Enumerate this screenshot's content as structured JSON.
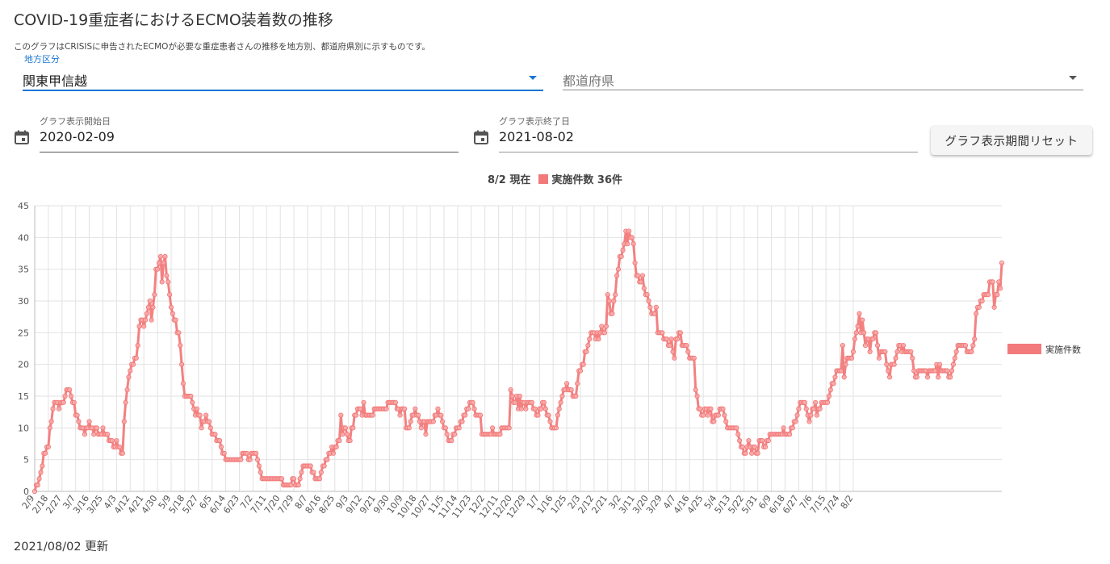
{
  "page": {
    "title": "COVID-19重症者におけるECMO装着数の推移",
    "description": "このグラフはCRISISに申告されたECMOが必要な重症患者さんの推移を地方別、都道府県別に示すものです。",
    "updated": "2021/08/02 更新"
  },
  "filters": {
    "region_label": "地方区分",
    "region_value": "関東甲信越",
    "prefecture_placeholder": "都道府県"
  },
  "dates": {
    "start_label": "グラフ表示開始日",
    "start_value": "2020-02-09",
    "end_label": "グラフ表示終了日",
    "end_value": "2021-08-02",
    "reset_label": "グラフ表示期間リセット"
  },
  "summary": {
    "date_text": "8/2 現在",
    "count_text": "実施件数 36件"
  },
  "colors": {
    "series": "#f27a7a",
    "accent": "#1976d2"
  },
  "chart_data": {
    "type": "line",
    "y_range": [
      0,
      45
    ],
    "y_ticks": [
      0,
      5,
      10,
      15,
      20,
      25,
      30,
      35,
      40,
      45
    ],
    "grid": true,
    "legend_position": "right",
    "x_tick_labels": [
      "2/9",
      "2/18",
      "2/27",
      "3/7",
      "3/16",
      "3/25",
      "4/3",
      "4/12",
      "4/21",
      "4/30",
      "5/9",
      "5/18",
      "5/27",
      "6/5",
      "6/14",
      "6/23",
      "7/2",
      "7/11",
      "7/20",
      "7/29",
      "8/7",
      "8/16",
      "8/25",
      "9/3",
      "9/12",
      "9/21",
      "9/30",
      "10/9",
      "10/18",
      "10/27",
      "11/5",
      "11/14",
      "11/23",
      "12/2",
      "12/11",
      "12/20",
      "12/29",
      "1/7",
      "1/16",
      "1/25",
      "2/3",
      "2/12",
      "2/21",
      "3/2",
      "3/11",
      "3/20",
      "3/29",
      "4/7",
      "4/16",
      "4/25",
      "5/4",
      "5/13",
      "5/22",
      "5/31",
      "6/9",
      "6/18",
      "6/27",
      "7/6",
      "7/15",
      "7/24",
      "8/2"
    ],
    "series": [
      {
        "name": "実施件数",
        "x_start": "2020-02-09",
        "x_step_days": 1,
        "values": [
          0,
          1,
          1,
          2,
          3,
          4,
          6,
          6,
          7,
          7,
          10,
          11,
          13,
          14,
          14,
          14,
          13,
          14,
          14,
          14,
          15,
          16,
          16,
          16,
          15,
          14,
          14,
          12,
          12,
          11,
          10,
          10,
          10,
          9,
          10,
          10,
          11,
          10,
          10,
          9,
          10,
          10,
          9,
          9,
          9,
          10,
          9,
          9,
          9,
          8,
          8,
          8,
          7,
          7,
          8,
          7,
          7,
          6,
          6,
          11,
          14,
          16,
          18,
          19,
          20,
          20,
          21,
          21,
          23,
          26,
          27,
          27,
          26,
          27,
          28,
          29,
          30,
          27,
          29,
          31,
          35,
          35,
          36,
          37,
          33,
          36,
          37,
          34,
          33,
          31,
          29,
          28,
          27,
          27,
          25,
          25,
          23,
          20,
          17,
          15,
          15,
          15,
          15,
          15,
          14,
          13,
          12,
          13,
          12,
          12,
          10,
          11,
          11,
          12,
          11,
          11,
          10,
          9,
          9,
          9,
          8,
          8,
          8,
          7,
          6,
          6,
          5,
          5,
          5,
          5,
          5,
          5,
          5,
          5,
          5,
          5,
          5,
          6,
          6,
          6,
          6,
          5,
          5,
          6,
          6,
          6,
          6,
          5,
          4,
          3,
          2,
          2,
          2,
          2,
          2,
          2,
          2,
          2,
          2,
          2,
          2,
          2,
          2,
          2,
          1,
          1,
          1,
          1,
          1,
          1,
          2,
          2,
          1,
          1,
          1,
          2,
          3,
          4,
          4,
          4,
          4,
          4,
          4,
          3,
          3,
          2,
          2,
          2,
          2,
          3,
          4,
          4,
          5,
          5,
          6,
          6,
          7,
          6,
          7,
          7,
          8,
          8,
          12,
          9,
          10,
          10,
          9,
          8,
          8,
          10,
          10,
          12,
          12,
          13,
          13,
          13,
          12,
          14,
          12,
          12,
          12,
          12,
          12,
          12,
          13,
          13,
          13,
          13,
          13,
          13,
          13,
          13,
          13,
          14,
          14,
          14,
          14,
          14,
          14,
          13,
          13,
          12,
          13,
          13,
          13,
          10,
          10,
          10,
          11,
          12,
          12,
          13,
          12,
          12,
          11,
          10,
          11,
          11,
          9,
          11,
          11,
          11,
          11,
          11,
          12,
          12,
          13,
          12,
          12,
          11,
          10,
          10,
          9,
          8,
          8,
          8,
          9,
          9,
          10,
          10,
          10,
          11,
          11,
          12,
          12,
          13,
          13,
          14,
          14,
          14,
          13,
          12,
          12,
          12,
          12,
          9,
          9,
          9,
          9,
          9,
          9,
          9,
          10,
          9,
          9,
          9,
          9,
          9,
          10,
          10,
          10,
          10,
          10,
          10,
          16,
          15,
          14,
          14,
          15,
          13,
          15,
          13,
          14,
          14,
          13,
          14,
          14,
          14,
          14,
          13,
          13,
          12,
          12,
          13,
          13,
          14,
          14,
          13,
          12,
          12,
          11,
          10,
          10,
          10,
          10,
          12,
          13,
          14,
          15,
          16,
          16,
          17,
          16,
          16,
          16,
          15,
          15,
          15,
          17,
          19,
          19,
          20,
          20,
          22,
          22,
          23,
          24,
          25,
          25,
          25,
          24,
          25,
          24,
          25,
          26,
          25,
          25,
          26,
          31,
          30,
          28,
          28,
          30,
          31,
          34,
          35,
          37,
          37,
          38,
          39,
          41,
          39,
          41,
          40,
          40,
          39,
          36,
          34,
          34,
          33,
          33,
          34,
          32,
          31,
          31,
          30,
          29,
          28,
          28,
          28,
          29,
          25,
          25,
          25,
          25,
          24,
          24,
          24,
          23,
          23,
          24,
          22,
          21,
          24,
          24,
          25,
          25,
          23,
          23,
          23,
          23,
          22,
          21,
          21,
          21,
          21,
          16,
          15,
          13,
          13,
          12,
          12,
          13,
          13,
          12,
          13,
          13,
          11,
          11,
          12,
          12,
          12,
          13,
          13,
          13,
          12,
          11,
          10,
          10,
          10,
          10,
          10,
          10,
          10,
          9,
          8,
          7,
          7,
          6,
          6,
          7,
          8,
          7,
          6,
          7,
          7,
          6,
          6,
          8,
          8,
          8,
          7,
          7,
          8,
          8,
          9,
          9,
          9,
          9,
          9,
          9,
          9,
          9,
          9,
          10,
          9,
          9,
          9,
          9,
          10,
          10,
          11,
          11,
          12,
          13,
          14,
          14,
          14,
          14,
          13,
          12,
          11,
          12,
          13,
          13,
          14,
          12,
          13,
          13,
          14,
          14,
          14,
          14,
          14,
          15,
          16,
          17,
          17,
          18,
          19,
          19,
          19,
          19,
          23,
          18,
          20,
          21,
          21,
          21,
          21,
          22,
          24,
          25,
          26,
          28,
          25,
          27,
          25,
          23,
          24,
          24,
          22,
          24,
          24,
          25,
          25,
          23,
          21,
          22,
          22,
          22,
          22,
          20,
          19,
          18,
          20,
          20,
          20,
          21,
          22,
          23,
          23,
          22,
          23,
          22,
          22,
          22,
          22,
          22,
          21,
          19,
          18,
          18,
          19,
          19,
          19,
          19,
          19,
          19,
          18,
          19,
          19,
          19,
          19,
          19,
          20,
          18,
          20,
          19,
          19,
          19,
          19,
          19,
          18,
          18,
          19,
          20,
          21,
          22,
          23,
          23,
          23,
          23,
          23,
          23,
          22,
          22,
          22,
          22,
          23,
          24,
          28,
          29,
          29,
          30,
          30,
          31,
          31,
          31,
          31,
          33,
          33,
          33,
          29,
          31,
          31,
          33,
          32,
          36
        ]
      }
    ]
  }
}
